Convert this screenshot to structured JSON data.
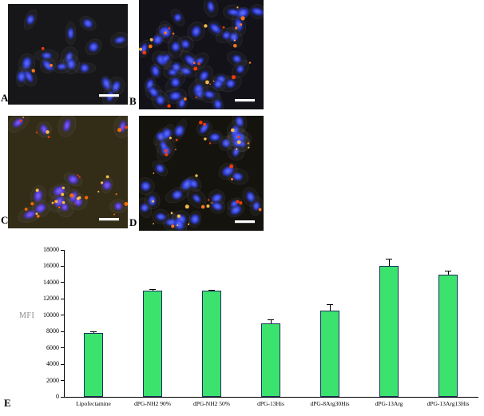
{
  "figure": {
    "panels": [
      {
        "label": "A",
        "background": "#17171a",
        "nucleus_color": "#2b3cf0",
        "nucleus_core": "#6f7cff",
        "nuclei": 17,
        "puncta": 3,
        "puncta_color": "#ff7a1a",
        "seed": 11,
        "scale_bar": true
      },
      {
        "label": "B",
        "background": "#121218",
        "nucleus_color": "#2636ea",
        "nucleus_core": "#7080ff",
        "nuclei": 40,
        "puncta": 26,
        "puncta_color": "#ff7a1a",
        "seed": 22,
        "scale_bar": true
      },
      {
        "label": "C",
        "background": "#332d18",
        "nucleus_color": "#4a33e8",
        "nucleus_core": "#9a6cff",
        "nuclei": 15,
        "puncta": 32,
        "puncta_color": "#ff6a00",
        "seed": 33,
        "scale_bar": true
      },
      {
        "label": "D",
        "background": "#15130e",
        "nucleus_color": "#2b3cf0",
        "nucleus_core": "#7080ff",
        "nuclei": 36,
        "puncta": 34,
        "puncta_color": "#ff7a1a",
        "seed": 44,
        "scale_bar": true
      }
    ],
    "chart_label": "E"
  },
  "chart_data": {
    "type": "bar",
    "title": "",
    "xlabel": "",
    "ylabel": "MFI",
    "categories": [
      "Lipofectamine",
      "dPG-NH2 90%",
      "dPG-NH2 50%",
      "dPG-13His",
      "dPG-8Arg30His",
      "dPG-13Arg",
      "dPG-13Arg13His"
    ],
    "values": [
      7800,
      13000,
      13000,
      9000,
      10600,
      16000,
      15000
    ],
    "errors": [
      150,
      150,
      100,
      450,
      700,
      850,
      450
    ],
    "ylim": [
      0,
      18000
    ],
    "ytick_step": 2000,
    "grid": false,
    "legend": false,
    "bar_color": "#3ce26e",
    "bar_border": "#1d2f5e",
    "error_color": "#000000"
  }
}
